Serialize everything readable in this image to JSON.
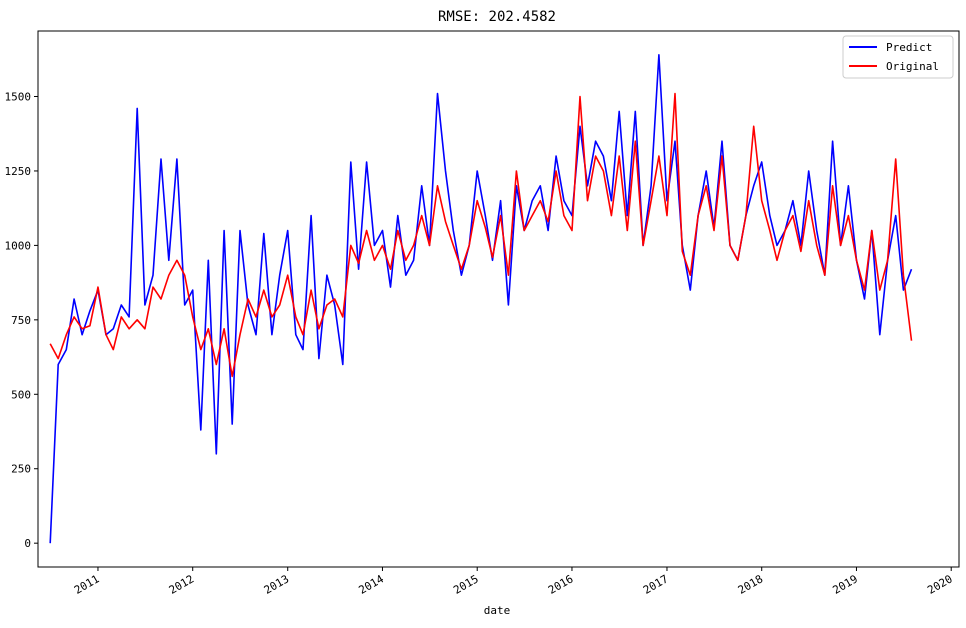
{
  "chart_data": {
    "type": "line",
    "title": "RMSE: 202.4582",
    "xlabel": "date",
    "ylabel": "",
    "xlim": [
      "2010-05-15",
      "2020-01-31"
    ],
    "ylim": [
      -80,
      1720
    ],
    "x_ticks": [
      "2011",
      "2012",
      "2013",
      "2014",
      "2015",
      "2016",
      "2017",
      "2018",
      "2019",
      "2020"
    ],
    "y_ticks": [
      "0",
      "250",
      "500",
      "750",
      "1000",
      "1250",
      "1500"
    ],
    "y_tick_values": [
      0,
      250,
      500,
      750,
      1000,
      1250,
      1500
    ],
    "x_tick_dates": [
      "2011-01-01",
      "2012-01-01",
      "2013-01-01",
      "2014-01-01",
      "2015-01-01",
      "2016-01-01",
      "2017-01-01",
      "2018-01-01",
      "2019-01-01",
      "2020-01-01"
    ],
    "legend": {
      "position": "upper-right",
      "entries": [
        "Predict",
        "Original"
      ]
    },
    "grid": false,
    "x": [
      "2010-07-01",
      "2010-08-01",
      "2010-09-01",
      "2010-10-01",
      "2010-11-01",
      "2010-12-01",
      "2011-01-01",
      "2011-02-01",
      "2011-03-01",
      "2011-04-01",
      "2011-05-01",
      "2011-06-01",
      "2011-07-01",
      "2011-08-01",
      "2011-09-01",
      "2011-10-01",
      "2011-11-01",
      "2011-12-01",
      "2012-01-01",
      "2012-02-01",
      "2012-03-01",
      "2012-04-01",
      "2012-05-01",
      "2012-06-01",
      "2012-07-01",
      "2012-08-01",
      "2012-09-01",
      "2012-10-01",
      "2012-11-01",
      "2012-12-01",
      "2013-01-01",
      "2013-02-01",
      "2013-03-01",
      "2013-04-01",
      "2013-05-01",
      "2013-06-01",
      "2013-07-01",
      "2013-08-01",
      "2013-09-01",
      "2013-10-01",
      "2013-11-01",
      "2013-12-01",
      "2014-01-01",
      "2014-02-01",
      "2014-03-01",
      "2014-04-01",
      "2014-05-01",
      "2014-06-01",
      "2014-07-01",
      "2014-08-01",
      "2014-09-01",
      "2014-10-01",
      "2014-11-01",
      "2014-12-01",
      "2015-01-01",
      "2015-02-01",
      "2015-03-01",
      "2015-04-01",
      "2015-05-01",
      "2015-06-01",
      "2015-07-01",
      "2015-08-01",
      "2015-09-01",
      "2015-10-01",
      "2015-11-01",
      "2015-12-01",
      "2016-01-01",
      "2016-02-01",
      "2016-03-01",
      "2016-04-01",
      "2016-05-01",
      "2016-06-01",
      "2016-07-01",
      "2016-08-01",
      "2016-09-01",
      "2016-10-01",
      "2016-11-01",
      "2016-12-01",
      "2017-01-01",
      "2017-02-01",
      "2017-03-01",
      "2017-04-01",
      "2017-05-01",
      "2017-06-01",
      "2017-07-01",
      "2017-08-01",
      "2017-09-01",
      "2017-10-01",
      "2017-11-01",
      "2017-12-01",
      "2018-01-01",
      "2018-02-01",
      "2018-03-01",
      "2018-04-01",
      "2018-05-01",
      "2018-06-01",
      "2018-07-01",
      "2018-08-01",
      "2018-09-01",
      "2018-10-01",
      "2018-11-01",
      "2018-12-01",
      "2019-01-01",
      "2019-02-01",
      "2019-03-01",
      "2019-04-01",
      "2019-05-01",
      "2019-06-01",
      "2019-07-01",
      "2019-08-01"
    ],
    "series": [
      {
        "name": "Predict",
        "color": "#0000ff",
        "values": [
          0,
          600,
          650,
          820,
          700,
          780,
          850,
          700,
          720,
          800,
          760,
          1460,
          800,
          900,
          1290,
          950,
          1290,
          800,
          850,
          380,
          950,
          300,
          1050,
          400,
          1050,
          800,
          700,
          1040,
          700,
          900,
          1050,
          700,
          650,
          1100,
          620,
          900,
          800,
          600,
          1280,
          920,
          1280,
          1000,
          1050,
          860,
          1100,
          900,
          950,
          1200,
          1000,
          1510,
          1250,
          1050,
          900,
          1000,
          1250,
          1100,
          950,
          1150,
          800,
          1200,
          1050,
          1150,
          1200,
          1050,
          1300,
          1150,
          1100,
          1400,
          1200,
          1350,
          1300,
          1150,
          1450,
          1100,
          1450,
          1000,
          1200,
          1640,
          1150,
          1350,
          1000,
          850,
          1100,
          1250,
          1060,
          1350,
          1000,
          950,
          1100,
          1200,
          1280,
          1100,
          1000,
          1050,
          1150,
          1000,
          1250,
          1050,
          900,
          1350,
          1000,
          1200,
          950,
          820,
          1050,
          700,
          950,
          1100,
          850,
          920
        ]
      },
      {
        "name": "Original",
        "color": "#ff0000",
        "values": [
          670,
          620,
          700,
          760,
          720,
          730,
          860,
          700,
          650,
          760,
          720,
          750,
          720,
          860,
          820,
          900,
          950,
          900,
          760,
          650,
          720,
          600,
          720,
          560,
          700,
          820,
          760,
          850,
          760,
          800,
          900,
          760,
          700,
          850,
          720,
          800,
          820,
          760,
          1000,
          940,
          1050,
          950,
          1000,
          920,
          1050,
          950,
          1000,
          1100,
          1000,
          1200,
          1080,
          1000,
          920,
          1000,
          1150,
          1060,
          960,
          1100,
          900,
          1250,
          1050,
          1100,
          1150,
          1080,
          1250,
          1100,
          1050,
          1500,
          1150,
          1300,
          1250,
          1100,
          1300,
          1050,
          1350,
          1000,
          1150,
          1300,
          1100,
          1510,
          980,
          900,
          1100,
          1200,
          1050,
          1300,
          1000,
          950,
          1100,
          1400,
          1150,
          1050,
          950,
          1050,
          1100,
          980,
          1150,
          1000,
          900,
          1200,
          1000,
          1100,
          950,
          850,
          1050,
          850,
          950,
          1290,
          900,
          680
        ]
      }
    ]
  }
}
